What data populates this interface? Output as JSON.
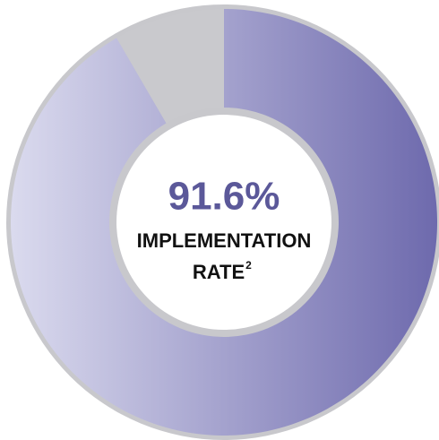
{
  "chart_data": {
    "type": "donut",
    "values": [
      91.6,
      8.4
    ],
    "value_labels": [
      "91.6%",
      null
    ],
    "colors": [
      [
        "#dcdcef",
        "#6c68ac"
      ],
      "#c9c9cd"
    ],
    "center_label": [
      "IMPLEMENTATION",
      "RATE"
    ],
    "footnote_marker": "2"
  }
}
